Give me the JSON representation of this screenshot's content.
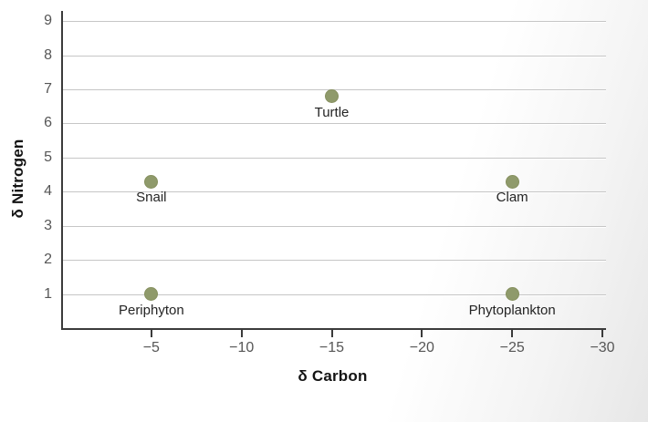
{
  "figure": {
    "accent_point_color": "#8f9a6b",
    "point_edge_color": "#86905f",
    "gridline_color": "#c6c6c6",
    "axis_line_color": "#3b3b3b",
    "tick_label_color": "#565656",
    "background_shade": "#e7e7e7"
  },
  "chart_data": {
    "type": "scatter",
    "title": "",
    "xlabel": "δ Carbon",
    "ylabel": "δ Nitrogen",
    "xlim": [
      0,
      -30.1
    ],
    "ylim": [
      0,
      9.3
    ],
    "x_ticks": [
      -5,
      -10,
      -15,
      -20,
      -25,
      -30
    ],
    "x_tick_labels": [
      "−5",
      "−10",
      "−15",
      "−20",
      "−25",
      "−30"
    ],
    "y_ticks": [
      1,
      2,
      3,
      4,
      5,
      6,
      7,
      8,
      9
    ],
    "y_tick_labels": [
      "1",
      "2",
      "3",
      "4",
      "5",
      "6",
      "7",
      "8",
      "9"
    ],
    "grid": "horizontal",
    "legend": "none",
    "points": [
      {
        "label": "Snail",
        "x": -5,
        "y": 4.3
      },
      {
        "label": "Turtle",
        "x": -15,
        "y": 6.8
      },
      {
        "label": "Clam",
        "x": -25,
        "y": 4.3
      },
      {
        "label": "Periphyton",
        "x": -5,
        "y": 1.0
      },
      {
        "label": "Phytoplankton",
        "x": -25,
        "y": 1.0
      }
    ]
  }
}
